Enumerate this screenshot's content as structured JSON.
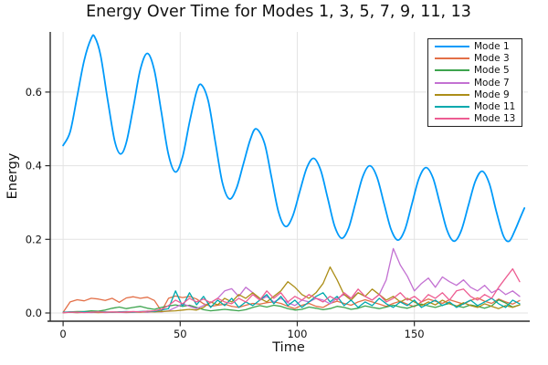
{
  "page_title": "Energy Over Time for Modes 1, 3, 5, 7, 9, 11, 13",
  "chart_data": {
    "type": "line",
    "title": "Energy Over Time for Modes 1, 3, 5, 7, 9, 11, 13",
    "xlabel": "Time",
    "ylabel": "Energy",
    "xlim": [
      -5.5,
      198.5
    ],
    "ylim": [
      -0.0223,
      0.7633
    ],
    "x_ticks": [
      0,
      50,
      100,
      150
    ],
    "y_ticks": [
      0.0,
      0.2,
      0.4,
      0.6
    ],
    "x_tick_labels": [
      "0",
      "50",
      "100",
      "150"
    ],
    "y_tick_labels": [
      "0.0",
      "0.2",
      "0.4",
      "0.6"
    ],
    "grid": true,
    "legend_position": "top-right",
    "style": {
      "background": "#ffffff",
      "grid_color": "#e3e3e3",
      "spine_color": "#2b2b2b",
      "text_color": "#111111",
      "legend_border": "#222222"
    },
    "series": [
      {
        "name": "Mode 1",
        "color": "#009AFA",
        "smooth": true,
        "width": 1.8,
        "points": [
          [
            0,
            0.455
          ],
          [
            3,
            0.492
          ],
          [
            6,
            0.588
          ],
          [
            9,
            0.686
          ],
          [
            12,
            0.746
          ],
          [
            13.5,
            0.75
          ],
          [
            16,
            0.7
          ],
          [
            19,
            0.58
          ],
          [
            22,
            0.468
          ],
          [
            24.5,
            0.432
          ],
          [
            27,
            0.463
          ],
          [
            30,
            0.559
          ],
          [
            33,
            0.662
          ],
          [
            36,
            0.705
          ],
          [
            39,
            0.658
          ],
          [
            42,
            0.544
          ],
          [
            45,
            0.43
          ],
          [
            48,
            0.383
          ],
          [
            51,
            0.424
          ],
          [
            54,
            0.518
          ],
          [
            57,
            0.601
          ],
          [
            59,
            0.62
          ],
          [
            62,
            0.575
          ],
          [
            65,
            0.465
          ],
          [
            68,
            0.355
          ],
          [
            71,
            0.31
          ],
          [
            74,
            0.338
          ],
          [
            77,
            0.405
          ],
          [
            80,
            0.472
          ],
          [
            82.5,
            0.5
          ],
          [
            86,
            0.461
          ],
          [
            89,
            0.368
          ],
          [
            92,
            0.274
          ],
          [
            95,
            0.235
          ],
          [
            98,
            0.262
          ],
          [
            101,
            0.328
          ],
          [
            104,
            0.393
          ],
          [
            107,
            0.42
          ],
          [
            110,
            0.388
          ],
          [
            113,
            0.312
          ],
          [
            116,
            0.235
          ],
          [
            119,
            0.203
          ],
          [
            122,
            0.232
          ],
          [
            125,
            0.302
          ],
          [
            128,
            0.371
          ],
          [
            131,
            0.4
          ],
          [
            134,
            0.37
          ],
          [
            137,
            0.299
          ],
          [
            140,
            0.228
          ],
          [
            143,
            0.198
          ],
          [
            146,
            0.227
          ],
          [
            149,
            0.297
          ],
          [
            152,
            0.366
          ],
          [
            155,
            0.395
          ],
          [
            158,
            0.366
          ],
          [
            161,
            0.295
          ],
          [
            164,
            0.224
          ],
          [
            167,
            0.195
          ],
          [
            170,
            0.223
          ],
          [
            173,
            0.29
          ],
          [
            176,
            0.357
          ],
          [
            179,
            0.385
          ],
          [
            182,
            0.352
          ],
          [
            185,
            0.276
          ],
          [
            188,
            0.21
          ],
          [
            190.5,
            0.195
          ],
          [
            193,
            0.225
          ],
          [
            195,
            0.255
          ],
          [
            197,
            0.285
          ]
        ]
      },
      {
        "name": "Mode 3",
        "color": "#E36F47",
        "smooth": false,
        "width": 1.3,
        "t0": 0,
        "dt": 3,
        "values": [
          0.002,
          0.03,
          0.036,
          0.033,
          0.04,
          0.038,
          0.034,
          0.04,
          0.029,
          0.041,
          0.044,
          0.04,
          0.043,
          0.034,
          0.005,
          0.04,
          0.046,
          0.042,
          0.045,
          0.038,
          0.025,
          0.018,
          0.021,
          0.024,
          0.018,
          0.015,
          0.021,
          0.026,
          0.024,
          0.028,
          0.03,
          0.026,
          0.018,
          0.012,
          0.021,
          0.026,
          0.018,
          0.015,
          0.026,
          0.032,
          0.026,
          0.021,
          0.03,
          0.036,
          0.03,
          0.024,
          0.018,
          0.026,
          0.032,
          0.024,
          0.017,
          0.03,
          0.038,
          0.032,
          0.026,
          0.036,
          0.03,
          0.024,
          0.034,
          0.041,
          0.032,
          0.026,
          0.038,
          0.03,
          0.024,
          0.034
        ]
      },
      {
        "name": "Mode 5",
        "color": "#3DA44E",
        "smooth": false,
        "width": 1.3,
        "t0": 0,
        "dt": 3,
        "values": [
          0.001,
          0.003,
          0.004,
          0.004,
          0.006,
          0.005,
          0.008,
          0.013,
          0.016,
          0.012,
          0.015,
          0.018,
          0.013,
          0.01,
          0.015,
          0.019,
          0.022,
          0.018,
          0.021,
          0.015,
          0.009,
          0.006,
          0.008,
          0.01,
          0.008,
          0.006,
          0.009,
          0.015,
          0.02,
          0.016,
          0.021,
          0.018,
          0.012,
          0.008,
          0.01,
          0.016,
          0.013,
          0.009,
          0.012,
          0.018,
          0.015,
          0.01,
          0.013,
          0.019,
          0.015,
          0.012,
          0.016,
          0.021,
          0.016,
          0.013,
          0.019,
          0.024,
          0.019,
          0.015,
          0.021,
          0.026,
          0.019,
          0.015,
          0.022,
          0.018,
          0.013,
          0.019,
          0.036,
          0.027,
          0.016,
          0.022
        ]
      },
      {
        "name": "Mode 7",
        "color": "#C371D2",
        "smooth": false,
        "width": 1.3,
        "t0": 0,
        "dt": 3,
        "values": [
          0.001,
          0.002,
          0.001,
          0.002,
          0.001,
          0.002,
          0.001,
          0.002,
          0.002,
          0.001,
          0.002,
          0.003,
          0.002,
          0.004,
          0.003,
          0.006,
          0.015,
          0.025,
          0.018,
          0.012,
          0.02,
          0.028,
          0.04,
          0.06,
          0.066,
          0.045,
          0.07,
          0.055,
          0.035,
          0.045,
          0.03,
          0.04,
          0.028,
          0.02,
          0.035,
          0.03,
          0.04,
          0.035,
          0.025,
          0.04,
          0.05,
          0.04,
          0.055,
          0.045,
          0.035,
          0.05,
          0.09,
          0.175,
          0.13,
          0.1,
          0.06,
          0.08,
          0.095,
          0.07,
          0.098,
          0.085,
          0.075,
          0.09,
          0.07,
          0.06,
          0.075,
          0.055,
          0.065,
          0.05,
          0.06,
          0.045
        ]
      },
      {
        "name": "Mode 9",
        "color": "#AC8E18",
        "smooth": false,
        "width": 1.3,
        "t0": 0,
        "dt": 3,
        "values": [
          0.001,
          0.002,
          0.001,
          0.002,
          0.002,
          0.001,
          0.002,
          0.002,
          0.003,
          0.002,
          0.003,
          0.002,
          0.004,
          0.003,
          0.004,
          0.005,
          0.006,
          0.008,
          0.01,
          0.008,
          0.015,
          0.03,
          0.022,
          0.04,
          0.03,
          0.05,
          0.04,
          0.055,
          0.04,
          0.03,
          0.045,
          0.06,
          0.085,
          0.07,
          0.05,
          0.04,
          0.055,
          0.08,
          0.125,
          0.09,
          0.05,
          0.035,
          0.055,
          0.045,
          0.065,
          0.05,
          0.035,
          0.045,
          0.03,
          0.04,
          0.03,
          0.02,
          0.03,
          0.022,
          0.035,
          0.025,
          0.018,
          0.028,
          0.02,
          0.015,
          0.025,
          0.018,
          0.012,
          0.02,
          0.015,
          0.022
        ]
      },
      {
        "name": "Mode 11",
        "color": "#00A9AD",
        "smooth": false,
        "width": 1.3,
        "t0": 0,
        "dt": 3,
        "values": [
          0.002,
          0.003,
          0.002,
          0.003,
          0.002,
          0.003,
          0.003,
          0.002,
          0.003,
          0.004,
          0.003,
          0.004,
          0.005,
          0.004,
          0.008,
          0.012,
          0.06,
          0.018,
          0.055,
          0.022,
          0.045,
          0.015,
          0.035,
          0.02,
          0.04,
          0.015,
          0.03,
          0.02,
          0.035,
          0.05,
          0.025,
          0.045,
          0.02,
          0.035,
          0.015,
          0.03,
          0.045,
          0.055,
          0.03,
          0.045,
          0.02,
          0.035,
          0.015,
          0.03,
          0.02,
          0.04,
          0.025,
          0.015,
          0.03,
          0.02,
          0.035,
          0.015,
          0.025,
          0.035,
          0.02,
          0.03,
          0.015,
          0.025,
          0.035,
          0.02,
          0.03,
          0.04,
          0.025,
          0.015,
          0.035,
          0.025
        ]
      },
      {
        "name": "Mode 13",
        "color": "#ED5D92",
        "smooth": false,
        "width": 1.3,
        "t0": 0,
        "dt": 3,
        "values": [
          0.001,
          0.002,
          0.002,
          0.001,
          0.002,
          0.003,
          0.002,
          0.003,
          0.002,
          0.003,
          0.004,
          0.003,
          0.005,
          0.006,
          0.01,
          0.02,
          0.035,
          0.025,
          0.04,
          0.03,
          0.038,
          0.028,
          0.04,
          0.03,
          0.025,
          0.04,
          0.03,
          0.05,
          0.035,
          0.06,
          0.04,
          0.055,
          0.03,
          0.045,
          0.035,
          0.05,
          0.04,
          0.03,
          0.045,
          0.035,
          0.055,
          0.04,
          0.065,
          0.045,
          0.035,
          0.05,
          0.03,
          0.04,
          0.055,
          0.035,
          0.045,
          0.03,
          0.05,
          0.04,
          0.055,
          0.035,
          0.06,
          0.065,
          0.045,
          0.035,
          0.05,
          0.04,
          0.07,
          0.095,
          0.12,
          0.085
        ]
      }
    ]
  }
}
